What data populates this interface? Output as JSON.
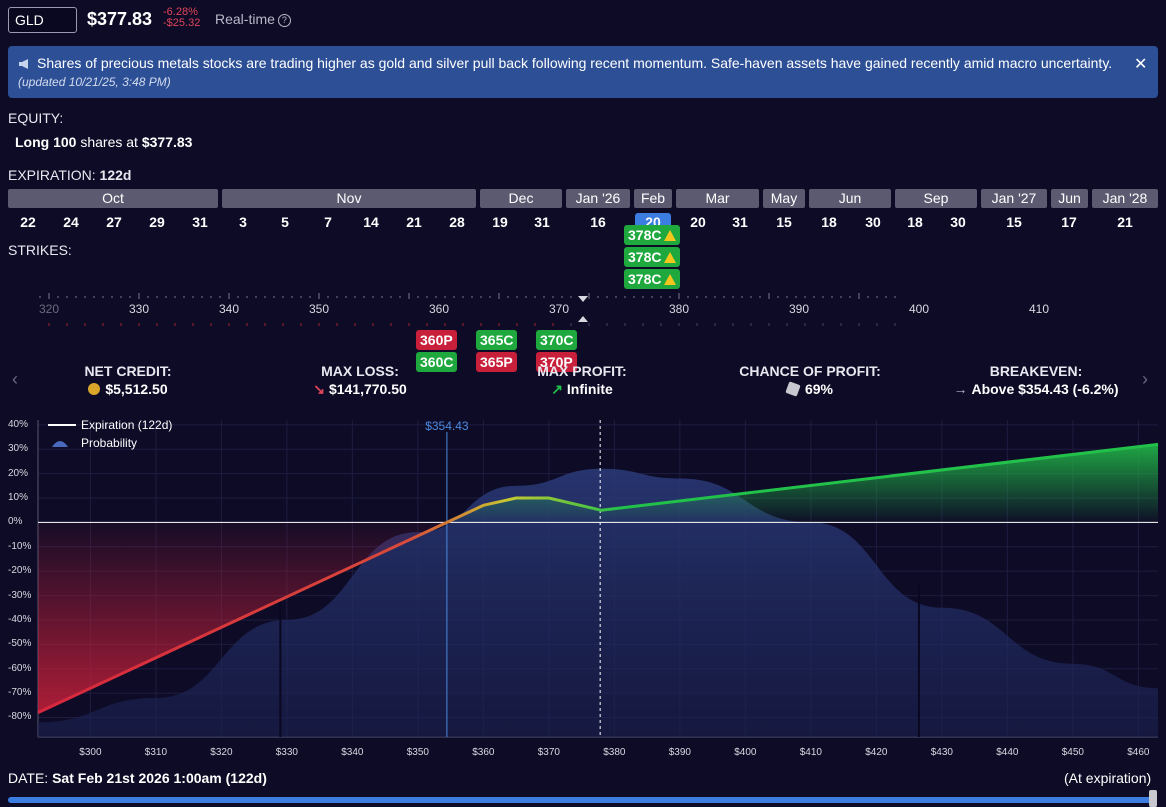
{
  "header": {
    "ticker": "GLD",
    "price": "$377.83",
    "change_pct": "-6.28%",
    "change_abs": "-$25.32",
    "realtime_label": "Real-time"
  },
  "banner": {
    "text": "Shares of precious metals stocks are trading higher as gold and silver pull back following recent momentum. Safe-haven assets have gained recently amid macro uncertainty.",
    "updated": "(updated 10/21/25, 3:48 PM)"
  },
  "equity": {
    "label": "EQUITY:",
    "position_prefix": "Long",
    "position_qty": "100",
    "position_mid": "shares at",
    "position_price": "$377.83"
  },
  "expiration": {
    "label": "EXPIRATION:",
    "days": "122d",
    "months": [
      "Oct",
      "Nov",
      "Dec",
      "Jan '26",
      "Feb",
      "Mar",
      "May",
      "Jun",
      "Sep",
      "Jan '27",
      "Jun",
      "Jan '28"
    ],
    "days_list": [
      "22",
      "24",
      "27",
      "29",
      "31",
      "3",
      "5",
      "7",
      "14",
      "21",
      "28",
      "19",
      "31",
      "16",
      "20",
      "20",
      "31",
      "15",
      "18",
      "30",
      "18",
      "30",
      "15",
      "17",
      "21"
    ],
    "selected_day": "20"
  },
  "strikes": {
    "label": "STRIKES:",
    "axis_labels": [
      "320",
      "330",
      "340",
      "350",
      "360",
      "370",
      "380",
      "390",
      "400",
      "410"
    ],
    "call_tags_top": [
      "378C",
      "378C",
      "378C"
    ],
    "lower_tags": [
      {
        "label": "360P",
        "type": "put"
      },
      {
        "label": "360C",
        "type": "call"
      },
      {
        "label": "365C",
        "type": "call"
      },
      {
        "label": "365P",
        "type": "put"
      },
      {
        "label": "370C",
        "type": "call"
      },
      {
        "label": "370P",
        "type": "put"
      }
    ]
  },
  "stats": {
    "net_credit_label": "NET CREDIT:",
    "net_credit_value": "$5,512.50",
    "max_loss_label": "MAX LOSS:",
    "max_loss_value": "$141,770.50",
    "max_profit_label": "MAX PROFIT:",
    "max_profit_value": "Infinite",
    "chance_label": "CHANCE OF PROFIT:",
    "chance_value": "69%",
    "breakeven_label": "BREAKEVEN:",
    "breakeven_value": "Above $354.43 (-6.2%)"
  },
  "chart_data": {
    "type": "line",
    "legend": [
      "Expiration (122d)",
      "Probability"
    ],
    "breakeven_marker": "$354.43",
    "breakeven_x": 354.43,
    "current_price_x": 377.83,
    "y_ticks": [
      "40%",
      "30%",
      "20%",
      "10%",
      "0%",
      "-10%",
      "-20%",
      "-30%",
      "-40%",
      "-50%",
      "-60%",
      "-70%",
      "-80%"
    ],
    "x_ticks": [
      "$300",
      "$310",
      "$320",
      "$330",
      "$340",
      "$350",
      "$360",
      "$370",
      "$380",
      "$390",
      "$400",
      "$410",
      "$420",
      "$430",
      "$440",
      "$450",
      "$460"
    ],
    "xlim": [
      292,
      463
    ],
    "ylim": [
      -88,
      42
    ],
    "series": [
      {
        "name": "Expiration (122d)",
        "x": [
          292,
          354.43,
          360,
          365,
          370,
          378,
          463
        ],
        "y": [
          -78,
          0,
          7,
          10,
          10,
          5,
          32
        ]
      }
    ],
    "probability_curve": {
      "x": [
        292,
        310,
        330,
        350,
        365,
        378,
        390,
        410,
        430,
        450,
        463
      ],
      "y": [
        -82,
        -72,
        -40,
        -4,
        15,
        22,
        18,
        0,
        -35,
        -58,
        -68
      ]
    }
  },
  "footer": {
    "date_label": "DATE:",
    "date_value": "Sat Feb 21st 2026 1:00am (122d)",
    "at_expiration": "(At expiration)"
  },
  "colors": {
    "bg": "#0e0b26",
    "profit": "#22c24a",
    "loss": "#d8263e",
    "accent": "#3b7de0"
  }
}
